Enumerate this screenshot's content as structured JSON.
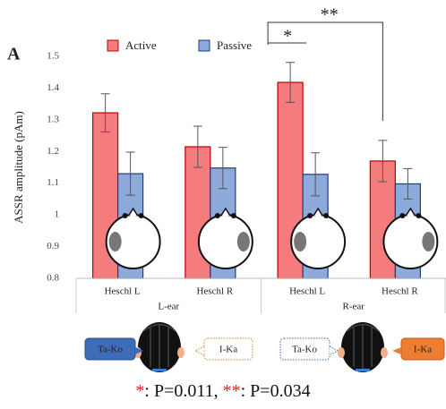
{
  "chart_data": {
    "type": "bar",
    "panel_label": "A",
    "y_label": "ASSR amplitude (pAm)",
    "categories": [
      "Heschl L",
      "Heschl R",
      "Heschl L",
      "Heschl R"
    ],
    "groups": [
      "L-ear",
      "R-ear"
    ],
    "series": [
      {
        "name": "Active",
        "color": "#f47c7c",
        "edge": "#c00000",
        "values": [
          1.322,
          1.215,
          1.418,
          1.17
        ],
        "errors": [
          0.06,
          0.065,
          0.063,
          0.065
        ]
      },
      {
        "name": "Passive",
        "color": "#8eaadb",
        "edge": "#1f3b84",
        "values": [
          1.13,
          1.148,
          1.128,
          1.098
        ],
        "errors": [
          0.068,
          0.065,
          0.068,
          0.048
        ]
      }
    ],
    "ylim": [
      0.8,
      1.5
    ],
    "yticks": [
      0.8,
      0.9,
      1,
      1.1,
      1.2,
      1.3,
      1.4,
      1.5
    ],
    "grid": false,
    "significance_labels": [
      "*",
      "**"
    ],
    "speech_labels": [
      "Ta-Ko",
      "I-Ka",
      "Ta-Ko",
      "I-Ka"
    ],
    "footnote": [
      {
        "mark": "*",
        "text": ": P=0.011,"
      },
      {
        "mark": "**",
        "text": ": P=0.034"
      }
    ]
  }
}
